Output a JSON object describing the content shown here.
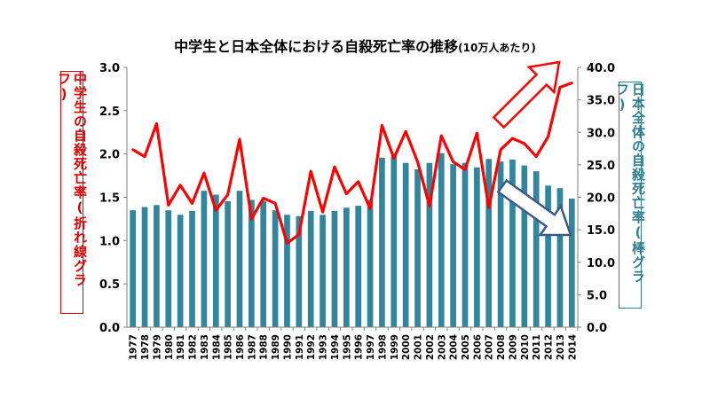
{
  "colors": {
    "line": "#ff0000",
    "bar": "#31859c",
    "left_axis_text": "#e00000",
    "right_axis_text": "#2f7f8f",
    "arrow_up_outline": "#ff0000",
    "arrow_down_outline": "#3b5a8a"
  },
  "chart_data": {
    "type": "bar",
    "title": "中学生と日本全体における自殺死亡率の推移",
    "title_suffix": "(10万人あたり)",
    "categories": [
      "1977",
      "1978",
      "1979",
      "1980",
      "1981",
      "1982",
      "1983",
      "1984",
      "1985",
      "1986",
      "1987",
      "1988",
      "1989",
      "1990",
      "1991",
      "1992",
      "1993",
      "1994",
      "1995",
      "1996",
      "1997",
      "1998",
      "1999",
      "2000",
      "2001",
      "2002",
      "2003",
      "2004",
      "2005",
      "2006",
      "2007",
      "2008",
      "2009",
      "2010",
      "2011",
      "2012",
      "2013",
      "2014"
    ],
    "series": [
      {
        "name": "中学生の自殺死亡率(折れ線グラフ)",
        "type": "line",
        "axis": "left",
        "values": [
          2.05,
          1.97,
          2.35,
          1.41,
          1.64,
          1.43,
          1.78,
          1.35,
          1.53,
          2.17,
          1.25,
          1.49,
          1.43,
          0.97,
          1.07,
          1.8,
          1.33,
          1.85,
          1.54,
          1.68,
          1.37,
          2.33,
          1.95,
          2.26,
          1.91,
          1.4,
          2.21,
          1.91,
          1.82,
          2.24,
          1.38,
          2.05,
          2.18,
          2.12,
          1.97,
          2.2,
          2.77,
          2.82
        ]
      },
      {
        "name": "日本全体の自殺死亡率(棒グラフ)",
        "type": "bar",
        "axis": "right",
        "values": [
          18.0,
          18.5,
          18.8,
          18.0,
          17.3,
          17.9,
          21.0,
          20.4,
          19.4,
          21.0,
          19.6,
          19.4,
          18.0,
          17.3,
          17.1,
          17.9,
          17.3,
          17.9,
          18.4,
          18.7,
          19.6,
          26.1,
          26.3,
          25.3,
          24.3,
          25.3,
          26.8,
          25.1,
          25.3,
          24.6,
          25.9,
          25.5,
          25.8,
          24.9,
          24.0,
          21.8,
          21.4,
          19.8
        ]
      }
    ],
    "left_axis": {
      "label": "中学生の自殺死亡率(折れ線グラフ)",
      "ylim": [
        0,
        3.0
      ],
      "ticks": [
        "0.0",
        "0.5",
        "1.0",
        "1.5",
        "2.0",
        "2.5",
        "3.0"
      ]
    },
    "right_axis": {
      "label": "日本全体の自殺死亡率(棒グラフ)",
      "ylim": [
        0,
        40
      ],
      "ticks": [
        "0.0",
        "5.0",
        "10.0",
        "15.0",
        "20.0",
        "25.0",
        "30.0",
        "35.0",
        "40.0"
      ]
    },
    "grid": false,
    "legend": "none",
    "annotations": [
      "outline-arrow-up-right",
      "outline-arrow-down-right"
    ]
  }
}
